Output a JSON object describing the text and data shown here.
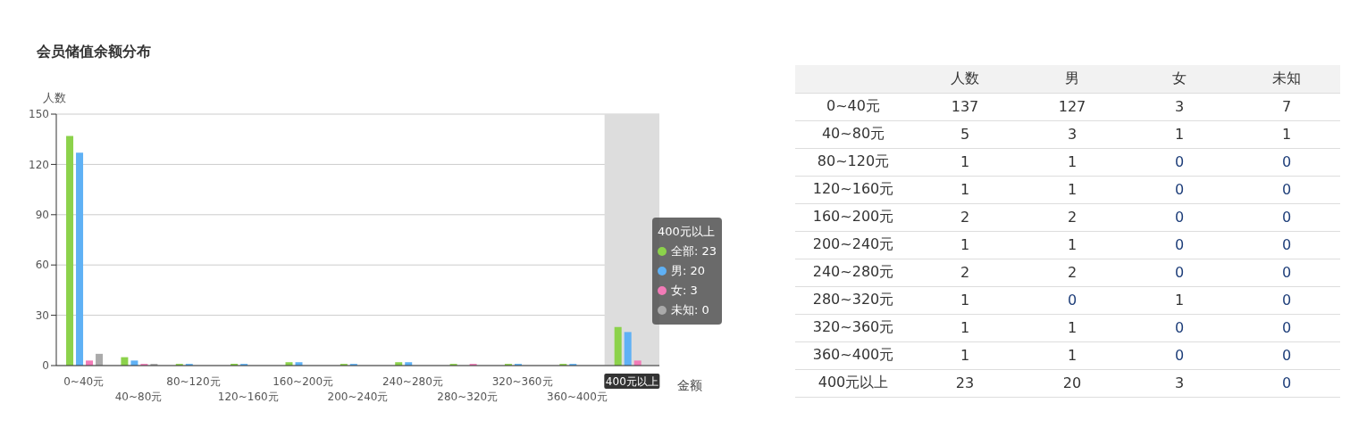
{
  "chart_data": [
    {
      "type": "bar",
      "title": "会员储值余额分布",
      "ylabel": "人数",
      "xlabel": "金额",
      "categories": [
        "0~40元",
        "40~80元",
        "80~120元",
        "120~160元",
        "160~200元",
        "200~240元",
        "240~280元",
        "280~320元",
        "320~360元",
        "360~400元",
        "400元以上"
      ],
      "series": [
        {
          "color": "#8cd24b",
          "values": [
            137,
            5,
            1,
            1,
            2,
            1,
            2,
            1,
            1,
            1,
            23
          ]
        },
        {
          "color": "#5fb1f5",
          "values": [
            127,
            3,
            1,
            1,
            2,
            1,
            2,
            0,
            1,
            1,
            20
          ]
        },
        {
          "color": "#f27bb7",
          "values": [
            3,
            1,
            0,
            0,
            0,
            0,
            0,
            1,
            0,
            0,
            3
          ]
        },
        {
          "color": "#aaaaaa",
          "values": [
            7,
            1,
            0,
            0,
            0,
            0,
            0,
            0,
            0,
            0,
            0
          ]
        }
      ],
      "ylim": [
        0,
        150
      ],
      "yticks": [
        0,
        30,
        60,
        90,
        120,
        150
      ],
      "grid": "y",
      "bands": [
        {
          "axis": "x",
          "from": "400元以上",
          "to": "400元以上",
          "color": "#dddddd"
        }
      ],
      "annotations": [
        "400元以上",
        "全部: 23",
        "男: 20",
        "女: 3",
        "未知: 0"
      ]
    },
    {
      "type": "heatmap",
      "categories": [
        "人数",
        "男",
        "女",
        "未知"
      ],
      "y_categories": [
        "0~40元",
        "40~80元",
        "80~120元",
        "120~160元",
        "160~200元",
        "200~240元",
        "240~280元",
        "280~320元",
        "320~360元",
        "360~400元",
        "400元以上"
      ],
      "cells": [
        [
          137,
          127,
          3,
          7
        ],
        [
          5,
          3,
          1,
          1
        ],
        [
          1,
          1,
          0,
          0
        ],
        [
          1,
          1,
          0,
          0
        ],
        [
          2,
          2,
          0,
          0
        ],
        [
          1,
          1,
          0,
          0
        ],
        [
          2,
          2,
          0,
          0
        ],
        [
          1,
          0,
          1,
          0
        ],
        [
          1,
          1,
          0,
          0
        ],
        [
          1,
          1,
          0,
          0
        ],
        [
          23,
          20,
          3,
          0
        ]
      ],
      "cell_labels": [
        [
          "137",
          "127",
          "3",
          "7"
        ],
        [
          "5",
          "3",
          "1",
          "1"
        ],
        [
          "1",
          "1",
          "0",
          "0"
        ],
        [
          "1",
          "1",
          "0",
          "0"
        ],
        [
          "2",
          "2",
          "0",
          "0"
        ],
        [
          "1",
          "1",
          "0",
          "0"
        ],
        [
          "2",
          "2",
          "0",
          "0"
        ],
        [
          "1",
          "0",
          "1",
          "0"
        ],
        [
          "1",
          "1",
          "0",
          "0"
        ],
        [
          "1",
          "1",
          "0",
          "0"
        ],
        [
          "23",
          "20",
          "3",
          "0"
        ]
      ]
    }
  ]
}
